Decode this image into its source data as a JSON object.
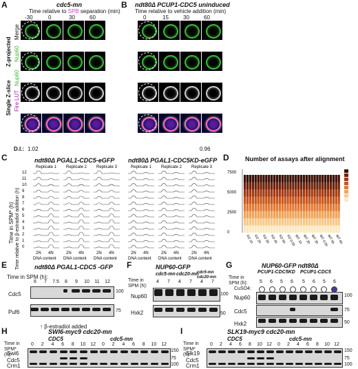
{
  "panelA": {
    "letter": "A",
    "title": "cdc5-mn",
    "subtitle_pre": "Time relative to",
    "subtitle_spb": "SPB",
    "subtitle_post": " separation (min)",
    "times": [
      "-30",
      "0",
      "30",
      "60"
    ],
    "rows": [
      "Merge",
      "Nup60",
      "Nup60",
      "Fire LUT"
    ],
    "group1": "Z-projected",
    "group2": "Single Z-slice",
    "di_label": "D.I.:",
    "di_left": "1.02",
    "di_right": ""
  },
  "panelB": {
    "letter": "B",
    "title": "ndt80Δ PCUP1-CDC5 uninduced",
    "subtitle": "Time relative to vehicle addition (min)",
    "times": [
      "0",
      "15",
      "30",
      "60"
    ],
    "di_left": "",
    "di_right": "0.96"
  },
  "panelC": {
    "letter": "C",
    "title_left": "ndt80Δ PGAL1-CDC5-eGFP",
    "title_right": "ndt80Δ PGAL1-CDC5KD-eGFP",
    "replicates": [
      "Replicate 1",
      "Replicate 2",
      "Replicate 3"
    ],
    "y_label": "Time in SPM* (h)",
    "y_label2": "Time relative to β-estradiol addition (h)",
    "y_ticks": [
      "12",
      "11",
      "10",
      "9",
      "8",
      "7",
      "6",
      "5",
      "4",
      "3",
      "2",
      "1",
      "0"
    ],
    "x_ticks": [
      "2N",
      "4N"
    ],
    "x_label": "DNA content"
  },
  "panelD": {
    "letter": "D",
    "title": "Number of assays after alignment",
    "y_ticks": [
      "7500",
      "5000",
      "2500",
      "0"
    ],
    "x_labels": [
      "KD 1h",
      "KD 2h",
      "KD 3h",
      "KD 4h",
      "KD 5h",
      "KD 0.5h",
      "WT 1h",
      "WT 2h",
      "WT 3h",
      "WT 0.5h",
      "WT 5h",
      "WT 6h"
    ]
  },
  "panelE": {
    "letter": "E",
    "title": "ndt80Δ PGAL1-CDC5 -GFP",
    "time_label": "Time in SPM (h):",
    "lanes": [
      "6",
      "7",
      "7.5",
      "8",
      "9",
      "10",
      "11",
      "12"
    ],
    "rows": [
      "Cdc5",
      "Puf6"
    ],
    "mw": [
      "100",
      "75"
    ],
    "note": "β-estradiol added"
  },
  "panelF": {
    "letter": "F",
    "title": "NUP60-GFP",
    "cols": [
      "cdc5-mn",
      "cdc20-mn",
      "cdc5-mn cdc20-mn"
    ],
    "time_label": "Time in SPM (h):",
    "lanes": [
      "4",
      "7",
      "4",
      "7",
      "4",
      "7"
    ],
    "rows": [
      "Nup60",
      "Hxk2"
    ],
    "mw": [
      "100",
      "50"
    ]
  },
  "panelG": {
    "letter": "G",
    "title": "NUP60-GFP ndt80Δ",
    "cols": [
      "PCUP1-CDC5KD",
      "PCUP1-CDC5"
    ],
    "time_label": "Time in SPM (h):",
    "cuso4": "CuSO4:",
    "lanes": [
      "5",
      "6",
      "5",
      "6",
      "5",
      "6",
      "5",
      "6"
    ],
    "rows": [
      "Nup60",
      "Cdc5",
      "Hxk2"
    ],
    "mw": [
      "100",
      "75",
      "50"
    ]
  },
  "panelH": {
    "letter": "H",
    "title": "SWI6-myc9  cdc20-mn",
    "cols": [
      "CDC5",
      "cdc5-mn"
    ],
    "time_label": "Time in SPM* (h):",
    "lanes": [
      "0",
      "2",
      "4",
      "6",
      "8",
      "10",
      "12",
      "0",
      "2",
      "4",
      "6",
      "8",
      "10",
      "12"
    ],
    "rows": [
      "Swi6",
      "Cdc5",
      "Crm1"
    ],
    "mw": [
      "150",
      "75",
      "100"
    ]
  },
  "panelI": {
    "letter": "I",
    "title": "SLK19-myc9  cdc20-mn",
    "cols": [
      "CDC5",
      "cdc5-mn"
    ],
    "time_label": "Time in SPM* (h):",
    "lanes": [
      "0",
      "2",
      "4",
      "6",
      "8",
      "10",
      "12",
      "0",
      "2",
      "4",
      "6",
      "8",
      "10",
      "12"
    ],
    "rows": [
      "Slk19",
      "Cdc5",
      "Crm1"
    ],
    "mw": [
      "150",
      "75",
      "100"
    ]
  },
  "colors": {
    "green": "#3dbb3d",
    "magenta": "#d63bd6",
    "navy": "#1a1a6a"
  }
}
